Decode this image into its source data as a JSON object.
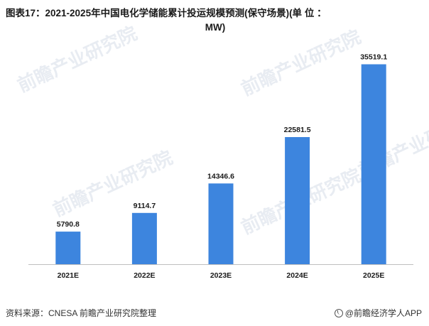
{
  "title_line1": "图表17：2021-2025年中国电化学储能累计投运规模预测(保守场景)(单 位 ：",
  "title_line2": "MW)",
  "chart_data": {
    "type": "bar",
    "categories": [
      "2021E",
      "2022E",
      "2023E",
      "2024E",
      "2025E"
    ],
    "values": [
      5790.8,
      9114.7,
      14346.6,
      22581.5,
      35519.1
    ],
    "value_labels": [
      "5790.8",
      "9114.7",
      "14346.6",
      "22581.5",
      "35519.1"
    ],
    "ylim": [
      0,
      40000
    ],
    "bar_color": "#3d85de",
    "grid": false,
    "legend": "none"
  },
  "watermark": {
    "text": "前瞻产业研究院",
    "sub": "前瞻产业研究院"
  },
  "source": "资料来源：CNESA 前瞻产业研究院整理",
  "brand": "@前瞻经济学人APP"
}
